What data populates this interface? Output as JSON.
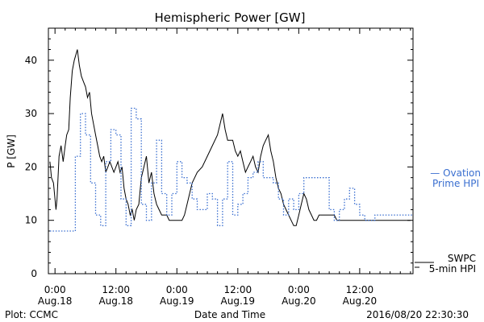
{
  "chart_data": {
    "type": "line",
    "title": "Hemispheric Power [GW]",
    "xlabel": "Date and Time",
    "ylabel": "P [GW]",
    "ylim": [
      0,
      46
    ],
    "xlim_hours": [
      -1.3,
      70.5
    ],
    "yticks": [
      0,
      10,
      20,
      30,
      40
    ],
    "xticks": [
      {
        "hour": 0,
        "time": "0:00",
        "date": "Aug.18"
      },
      {
        "hour": 12,
        "time": "12:00",
        "date": "Aug.18"
      },
      {
        "hour": 24,
        "time": "0:00",
        "date": "Aug.19"
      },
      {
        "hour": 36,
        "time": "12:00",
        "date": "Aug.19"
      },
      {
        "hour": 48,
        "time": "0:00",
        "date": "Aug.20"
      },
      {
        "hour": 60,
        "time": "12:00",
        "date": "Aug.20"
      }
    ],
    "x_unit": "hours since 2016-08-18 00:00 UT",
    "grid": false,
    "colors": {
      "ovation": "#3a6fd0",
      "swpc": "#000000",
      "text": "#000000"
    },
    "series": [
      {
        "name": "SWPC 5-min HPI",
        "label_lines": [
          "SWPC",
          "5-min HPI"
        ],
        "style": "solid",
        "color": "#000000",
        "x": [
          -1.0,
          -0.7,
          -0.3,
          0.2,
          0.4,
          0.8,
          1.2,
          1.6,
          2.0,
          2.3,
          2.7,
          3.0,
          3.4,
          3.8,
          4.1,
          4.4,
          4.8,
          5.2,
          5.6,
          6.0,
          6.4,
          6.8,
          7.2,
          7.6,
          8.0,
          8.4,
          8.8,
          9.2,
          9.6,
          10.0,
          10.4,
          10.8,
          11.2,
          11.6,
          12.0,
          12.4,
          12.8,
          13.2,
          13.6,
          14.0,
          14.4,
          14.8,
          15.2,
          15.6,
          16.0,
          16.5,
          17.0,
          17.5,
          18.0,
          18.5,
          19.0,
          19.5,
          20.0,
          20.5,
          21.0,
          21.5,
          22.0,
          22.5,
          23.0,
          23.5,
          24.0,
          24.5,
          25.0,
          25.5,
          26.0,
          27.0,
          28.0,
          29.0,
          30.0,
          31.0,
          32.0,
          32.5,
          33.0,
          33.5,
          34.0,
          34.5,
          35.0,
          35.5,
          36.0,
          36.5,
          37.0,
          37.5,
          38.0,
          38.5,
          39.0,
          39.5,
          40.0,
          40.5,
          41.0,
          41.5,
          42.0,
          42.5,
          43.0,
          43.5,
          44.0,
          44.5,
          45.0,
          45.5,
          46.0,
          46.5,
          47.0,
          47.5,
          48.0,
          48.5,
          49.0,
          49.5,
          50.0,
          50.5,
          51.0,
          51.5,
          52.0,
          52.5,
          53.0,
          53.5,
          54.0,
          54.5,
          55.0,
          55.5,
          56.0,
          56.5,
          57.0,
          57.5,
          58.0,
          58.5,
          59.0,
          59.5,
          60.0,
          61.0,
          62.0,
          63.0,
          64.0,
          65.0,
          66.0,
          67.0,
          68.0,
          69.0,
          70.0
        ],
        "y": [
          21,
          18,
          17,
          12,
          14,
          22,
          24,
          21,
          24,
          26,
          27,
          33,
          38,
          40,
          41,
          42,
          39,
          37,
          36,
          35,
          33,
          34,
          30,
          28,
          26,
          24,
          22,
          21,
          22,
          19,
          20,
          21,
          20,
          19,
          20,
          21,
          19,
          20,
          16,
          14,
          13,
          11,
          12,
          10,
          12,
          13,
          18,
          20,
          22,
          17,
          19,
          15,
          13,
          12,
          11,
          11,
          11,
          10,
          10,
          10,
          10,
          10,
          10,
          11,
          13,
          17,
          19,
          20,
          22,
          24,
          26,
          28,
          30,
          27,
          25,
          25,
          25,
          23,
          22,
          23,
          21,
          19,
          20,
          21,
          22,
          20,
          19,
          22,
          24,
          25,
          26,
          23,
          21,
          18,
          16,
          15,
          13,
          12,
          11,
          10,
          9,
          9,
          11,
          13,
          15,
          14,
          12,
          11,
          10,
          10,
          11,
          11,
          11,
          11,
          11,
          11,
          11,
          10,
          10,
          10,
          10,
          10,
          10,
          10,
          10,
          10,
          10,
          10,
          10,
          10,
          10,
          10,
          10,
          10,
          10,
          10,
          10
        ]
      },
      {
        "name": "Ovation Prime HPI",
        "label_lines": [
          "— Ovation",
          "Prime HPI"
        ],
        "style": "dotted",
        "color": "#3a6fd0",
        "x": [
          -1.0,
          0.0,
          1.0,
          2.0,
          3.0,
          4.0,
          5.0,
          6.0,
          7.0,
          8.0,
          9.0,
          10.0,
          11.0,
          12.0,
          13.0,
          14.0,
          15.0,
          16.0,
          17.0,
          18.0,
          19.0,
          20.0,
          21.0,
          22.0,
          23.0,
          24.0,
          25.0,
          26.0,
          27.0,
          28.0,
          29.0,
          30.0,
          31.0,
          32.0,
          33.0,
          34.0,
          35.0,
          36.0,
          37.0,
          38.0,
          39.0,
          40.0,
          41.0,
          42.0,
          43.0,
          44.0,
          45.0,
          46.0,
          47.0,
          48.0,
          49.0,
          50.0,
          51.0,
          52.0,
          53.0,
          54.0,
          55.0,
          56.0,
          57.0,
          58.0,
          59.0,
          60.0,
          61.0,
          62.0,
          63.0,
          64.0,
          65.0,
          66.0,
          67.0,
          68.0,
          69.0,
          70.0
        ],
        "y": [
          8,
          8,
          8,
          8,
          8,
          22,
          30,
          26,
          17,
          11,
          9,
          21,
          27,
          26,
          14,
          9,
          31,
          29,
          13,
          10,
          17,
          25,
          15,
          11,
          15,
          21,
          18,
          17,
          14,
          12,
          12,
          15,
          14,
          9,
          14,
          21,
          11,
          13,
          15,
          18,
          19,
          21,
          18,
          18,
          17,
          14,
          11,
          14,
          12,
          15,
          18,
          18,
          18,
          18,
          18,
          12,
          10,
          12,
          14,
          16,
          13,
          11,
          10,
          10,
          11,
          11,
          11,
          11,
          11,
          11,
          11,
          11
        ]
      }
    ]
  },
  "footer": {
    "plot_credit": "Plot: CCMC",
    "timestamp": "2016/08/20 22:30:30"
  }
}
